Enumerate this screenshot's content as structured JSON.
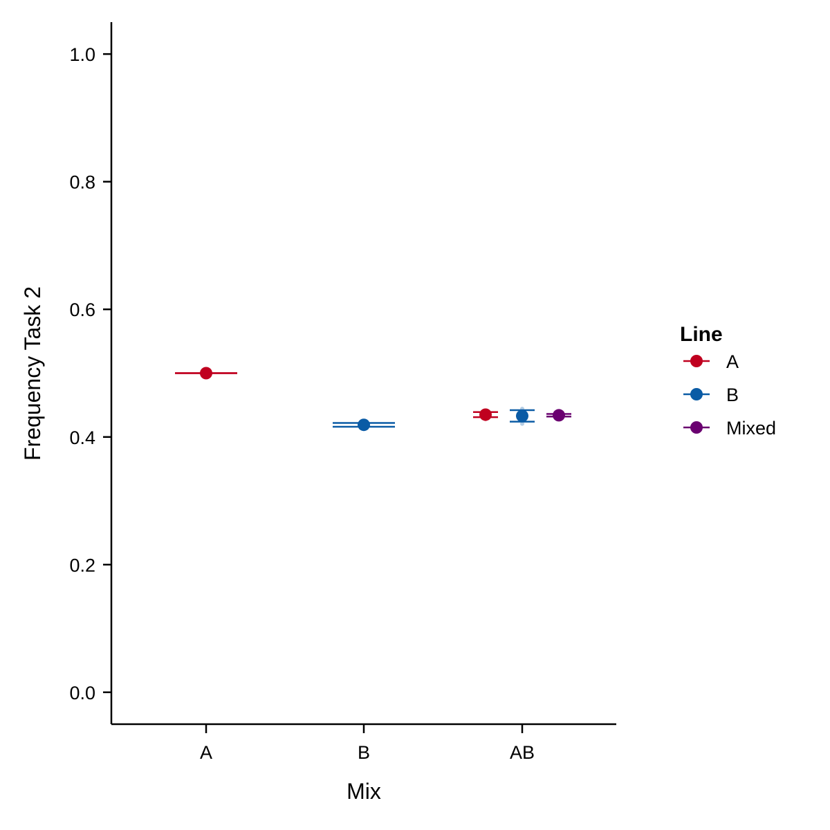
{
  "chart_data": {
    "type": "scatter",
    "xlabel": "Mix",
    "ylabel": "Frequency Task 2",
    "categories": [
      "A",
      "B",
      "AB"
    ],
    "ylim": [
      -0.05,
      1.05
    ],
    "yticks": [
      0.0,
      0.2,
      0.4,
      0.6,
      0.8,
      1.0
    ],
    "ytick_labels": [
      "0.0",
      "0.2",
      "0.4",
      "0.6",
      "0.8",
      "1.0"
    ],
    "grid": false,
    "legend": {
      "title": "Line",
      "placement": "right",
      "entries": [
        "A",
        "B",
        "Mixed"
      ]
    },
    "series": [
      {
        "name": "A",
        "color": "#C0001F",
        "points": [
          {
            "x": "A",
            "y": 0.5,
            "ymin": 0.5,
            "ymax": 0.5
          },
          {
            "x": "AB",
            "y": 0.435,
            "ymin": 0.431,
            "ymax": 0.439
          }
        ]
      },
      {
        "name": "B",
        "color": "#0A5BA5",
        "points": [
          {
            "x": "B",
            "y": 0.419,
            "ymin": 0.416,
            "ymax": 0.422
          },
          {
            "x": "AB",
            "y": 0.433,
            "ymin": 0.424,
            "ymax": 0.442
          }
        ]
      },
      {
        "name": "Mixed",
        "color": "#6A0070",
        "points": [
          {
            "x": "AB",
            "y": 0.434,
            "ymin": 0.432,
            "ymax": 0.436
          }
        ]
      }
    ]
  }
}
